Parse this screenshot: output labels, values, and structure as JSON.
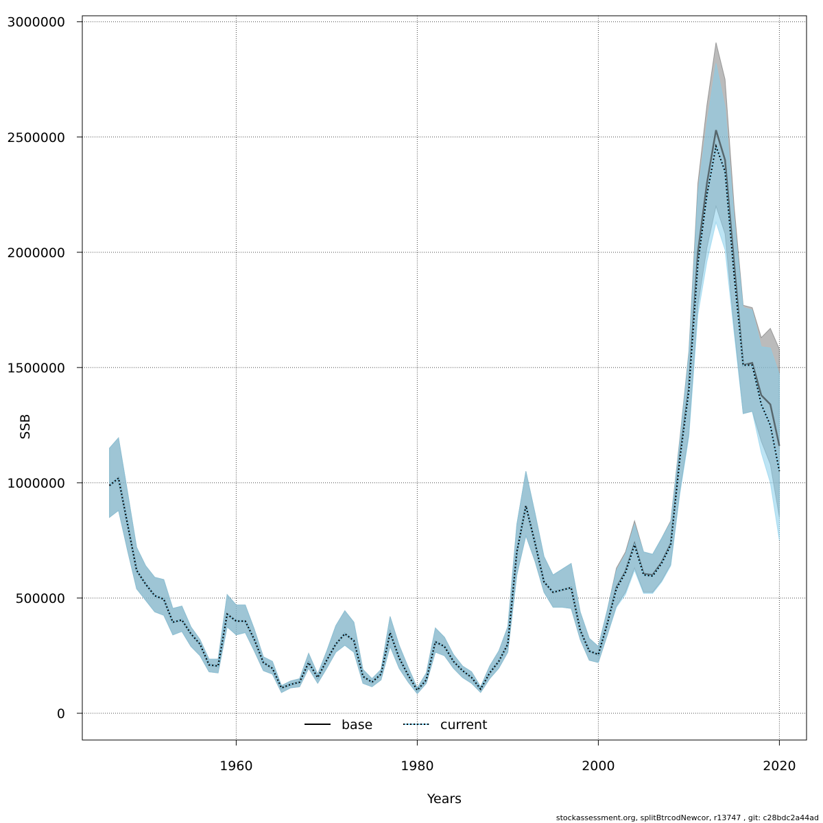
{
  "chart_data": {
    "type": "line",
    "xlabel": "Years",
    "ylabel": "SSB",
    "xlim": [
      1943,
      2023
    ],
    "ylim": [
      -116000,
      3026000
    ],
    "grid": true,
    "legend_placement": "bottom",
    "x_ticks": [
      1960,
      1980,
      2000,
      2020
    ],
    "x_tick_labels": [
      "1960",
      "1980",
      "2000",
      "2020"
    ],
    "y_ticks": [
      0,
      500000,
      1000000,
      1500000,
      2000000,
      2500000,
      3000000
    ],
    "y_tick_labels": [
      "0",
      "500000",
      "1000000",
      "1500000",
      "2000000",
      "2500000",
      "3000000"
    ],
    "x": [
      1946,
      1947,
      1948,
      1949,
      1950,
      1951,
      1952,
      1953,
      1954,
      1955,
      1956,
      1957,
      1958,
      1959,
      1960,
      1961,
      1962,
      1963,
      1964,
      1965,
      1966,
      1967,
      1968,
      1969,
      1970,
      1971,
      1972,
      1973,
      1974,
      1975,
      1976,
      1977,
      1978,
      1979,
      1980,
      1981,
      1982,
      1983,
      1984,
      1985,
      1986,
      1987,
      1988,
      1989,
      1990,
      1991,
      1992,
      1993,
      1994,
      1995,
      1996,
      1997,
      1998,
      1999,
      2000,
      2001,
      2002,
      2003,
      2004,
      2005,
      2006,
      2007,
      2008,
      2009,
      2010,
      2011,
      2012,
      2013,
      2014,
      2015,
      2016,
      2017,
      2018,
      2019,
      2020
    ],
    "series": [
      {
        "name": "base",
        "color": "#000000",
        "band_color": "#999999",
        "values": [
          988000,
          1020000,
          820000,
          620000,
          560000,
          510000,
          495000,
          395000,
          405000,
          345000,
          300000,
          210000,
          205000,
          430000,
          400000,
          400000,
          320000,
          220000,
          195000,
          110000,
          125000,
          135000,
          220000,
          155000,
          230000,
          300000,
          345000,
          315000,
          160000,
          135000,
          170000,
          350000,
          240000,
          165000,
          100000,
          145000,
          310000,
          290000,
          225000,
          185000,
          155000,
          105000,
          175000,
          225000,
          300000,
          700000,
          900000,
          740000,
          570000,
          525000,
          535000,
          545000,
          360000,
          270000,
          255000,
          390000,
          545000,
          615000,
          735000,
          605000,
          600000,
          655000,
          735000,
          1110000,
          1410000,
          2000000,
          2300000,
          2530000,
          2400000,
          1950000,
          1510000,
          1520000,
          1380000,
          1340000,
          1160000
        ],
        "lower": [
          850000,
          880000,
          705000,
          540000,
          490000,
          440000,
          425000,
          340000,
          355000,
          290000,
          250000,
          180000,
          175000,
          375000,
          340000,
          350000,
          270000,
          185000,
          170000,
          90000,
          110000,
          115000,
          195000,
          130000,
          195000,
          265000,
          295000,
          265000,
          130000,
          115000,
          145000,
          290000,
          195000,
          135000,
          85000,
          130000,
          265000,
          250000,
          195000,
          155000,
          130000,
          90000,
          150000,
          195000,
          265000,
          600000,
          770000,
          660000,
          525000,
          460000,
          460000,
          455000,
          320000,
          230000,
          220000,
          340000,
          465000,
          525000,
          630000,
          525000,
          525000,
          575000,
          645000,
          960000,
          1210000,
          1770000,
          2020000,
          2200000,
          2080000,
          1670000,
          1300000,
          1310000,
          1180000,
          1080000,
          850000
        ],
        "upper": [
          1150000,
          1195000,
          960000,
          720000,
          640000,
          590000,
          580000,
          455000,
          465000,
          375000,
          320000,
          235000,
          235000,
          515000,
          470000,
          470000,
          365000,
          245000,
          225000,
          120000,
          140000,
          150000,
          260000,
          170000,
          270000,
          380000,
          445000,
          395000,
          190000,
          150000,
          190000,
          420000,
          295000,
          200000,
          110000,
          175000,
          370000,
          330000,
          255000,
          205000,
          180000,
          115000,
          205000,
          270000,
          375000,
          820000,
          1050000,
          870000,
          680000,
          600000,
          625000,
          650000,
          440000,
          325000,
          290000,
          450000,
          630000,
          700000,
          835000,
          700000,
          690000,
          760000,
          835000,
          1190000,
          1570000,
          2300000,
          2640000,
          2910000,
          2750000,
          2200000,
          1770000,
          1760000,
          1630000,
          1670000,
          1580000
        ]
      },
      {
        "name": "current",
        "color": "#87CEEB",
        "band_color": "#87CEEB",
        "values": [
          988000,
          1020000,
          820000,
          620000,
          560000,
          510000,
          495000,
          395000,
          405000,
          345000,
          300000,
          210000,
          205000,
          430000,
          400000,
          400000,
          320000,
          220000,
          195000,
          110000,
          125000,
          135000,
          220000,
          155000,
          230000,
          300000,
          345000,
          315000,
          160000,
          135000,
          170000,
          350000,
          240000,
          165000,
          100000,
          145000,
          310000,
          290000,
          225000,
          185000,
          155000,
          105000,
          175000,
          225000,
          300000,
          700000,
          900000,
          740000,
          570000,
          525000,
          535000,
          545000,
          360000,
          270000,
          255000,
          390000,
          540000,
          610000,
          730000,
          600000,
          595000,
          650000,
          730000,
          1100000,
          1400000,
          1950000,
          2250000,
          2460000,
          2350000,
          1900000,
          1510000,
          1510000,
          1340000,
          1250000,
          1050000
        ],
        "lower": [
          850000,
          880000,
          705000,
          540000,
          490000,
          440000,
          425000,
          340000,
          355000,
          290000,
          250000,
          180000,
          175000,
          375000,
          340000,
          350000,
          270000,
          185000,
          170000,
          90000,
          110000,
          115000,
          195000,
          130000,
          195000,
          265000,
          295000,
          265000,
          130000,
          115000,
          145000,
          290000,
          195000,
          135000,
          85000,
          130000,
          265000,
          250000,
          195000,
          155000,
          130000,
          90000,
          150000,
          195000,
          265000,
          600000,
          770000,
          660000,
          525000,
          460000,
          460000,
          455000,
          320000,
          230000,
          220000,
          340000,
          460000,
          515000,
          620000,
          520000,
          520000,
          570000,
          640000,
          950000,
          1200000,
          1730000,
          1960000,
          2130000,
          2010000,
          1650000,
          1300000,
          1310000,
          1130000,
          1000000,
          750000
        ],
        "upper": [
          1150000,
          1195000,
          960000,
          720000,
          640000,
          590000,
          580000,
          455000,
          465000,
          375000,
          320000,
          235000,
          235000,
          515000,
          470000,
          470000,
          365000,
          245000,
          225000,
          120000,
          140000,
          150000,
          260000,
          170000,
          270000,
          380000,
          445000,
          395000,
          190000,
          150000,
          190000,
          420000,
          295000,
          200000,
          110000,
          175000,
          370000,
          330000,
          255000,
          205000,
          180000,
          115000,
          205000,
          270000,
          375000,
          820000,
          1050000,
          870000,
          680000,
          600000,
          625000,
          650000,
          440000,
          325000,
          290000,
          450000,
          620000,
          690000,
          820000,
          700000,
          690000,
          760000,
          830000,
          1180000,
          1560000,
          2260000,
          2560000,
          2820000,
          2630000,
          2150000,
          1760000,
          1750000,
          1590000,
          1585000,
          1470000
        ]
      }
    ],
    "legend": [
      "base",
      "current"
    ],
    "footer": "stockassessment.org, splitBtrcodNewcor, r13747 , git: c28bdc2a44ad"
  }
}
